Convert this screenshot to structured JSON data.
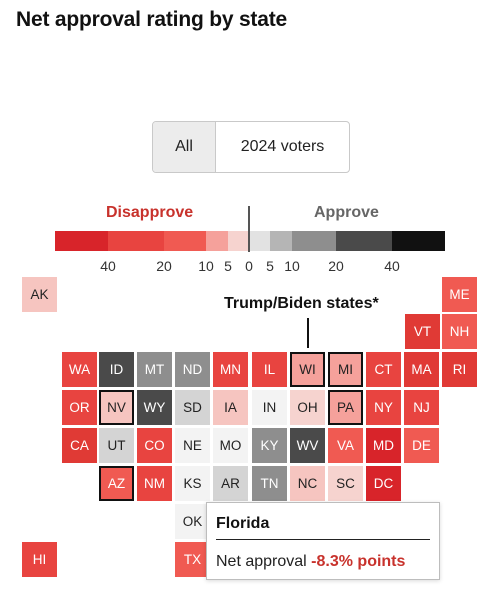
{
  "title": "Net approval rating by state",
  "toggle": {
    "all_label": "All",
    "voters_label": "2024 voters",
    "selected": "All"
  },
  "legend": {
    "disapprove_label": "Disapprove",
    "approve_label": "Approve",
    "disapprove_color": "#c8322c",
    "approve_color": "#666666",
    "ticks": [
      "40",
      "20",
      "10",
      "5",
      "0",
      "5",
      "10",
      "20",
      "40"
    ]
  },
  "annotation": {
    "label": "Trump/Biden states*"
  },
  "tooltip": {
    "state": "Florida",
    "prefix": "Net approval",
    "value": "-8.3% points"
  },
  "states": [
    {
      "abbr": "AK",
      "color": "#f6c5c0"
    },
    {
      "abbr": "ME",
      "color": "#f05a52"
    },
    {
      "abbr": "VT",
      "color": "#e03a35"
    },
    {
      "abbr": "NH",
      "color": "#f05a52"
    },
    {
      "abbr": "WA",
      "color": "#e84440"
    },
    {
      "abbr": "ID",
      "color": "#4a4a4a"
    },
    {
      "abbr": "MT",
      "color": "#8e8e8e"
    },
    {
      "abbr": "ND",
      "color": "#8e8e8e"
    },
    {
      "abbr": "MN",
      "color": "#e84440"
    },
    {
      "abbr": "IL",
      "color": "#e84440"
    },
    {
      "abbr": "WI",
      "color": "#f5a19b",
      "outlined": true
    },
    {
      "abbr": "MI",
      "color": "#f5a19b",
      "outlined": true
    },
    {
      "abbr": "CT",
      "color": "#e84440"
    },
    {
      "abbr": "MA",
      "color": "#e03a35"
    },
    {
      "abbr": "RI",
      "color": "#e03a35"
    },
    {
      "abbr": "OR",
      "color": "#e84440"
    },
    {
      "abbr": "NV",
      "color": "#f6c5c0",
      "outlined": true
    },
    {
      "abbr": "WY",
      "color": "#4a4a4a"
    },
    {
      "abbr": "SD",
      "color": "#d4d4d4"
    },
    {
      "abbr": "IA",
      "color": "#f6c5c0"
    },
    {
      "abbr": "IN",
      "color": "#f3f3f3"
    },
    {
      "abbr": "OH",
      "color": "#f6d3cf"
    },
    {
      "abbr": "PA",
      "color": "#f5a19b",
      "outlined": true
    },
    {
      "abbr": "NY",
      "color": "#e84440"
    },
    {
      "abbr": "NJ",
      "color": "#e84440"
    },
    {
      "abbr": "CA",
      "color": "#e03a35"
    },
    {
      "abbr": "UT",
      "color": "#d4d4d4"
    },
    {
      "abbr": "CO",
      "color": "#e84440"
    },
    {
      "abbr": "NE",
      "color": "#f3f3f3"
    },
    {
      "abbr": "MO",
      "color": "#f3f3f3"
    },
    {
      "abbr": "KY",
      "color": "#8e8e8e"
    },
    {
      "abbr": "WV",
      "color": "#4a4a4a"
    },
    {
      "abbr": "VA",
      "color": "#f05a52"
    },
    {
      "abbr": "MD",
      "color": "#d8242a"
    },
    {
      "abbr": "DE",
      "color": "#f05a52"
    },
    {
      "abbr": "AZ",
      "color": "#f05a52",
      "outlined": true
    },
    {
      "abbr": "NM",
      "color": "#e84440"
    },
    {
      "abbr": "KS",
      "color": "#f3f3f3"
    },
    {
      "abbr": "AR",
      "color": "#d4d4d4"
    },
    {
      "abbr": "TN",
      "color": "#8e8e8e"
    },
    {
      "abbr": "NC",
      "color": "#f6c5c0"
    },
    {
      "abbr": "SC",
      "color": "#f6d3cf"
    },
    {
      "abbr": "DC",
      "color": "#d8242a"
    },
    {
      "abbr": "OK",
      "color": "#f3f3f3"
    },
    {
      "abbr": "HI",
      "color": "#e84440"
    },
    {
      "abbr": "TX",
      "color": "#f05a52"
    }
  ]
}
